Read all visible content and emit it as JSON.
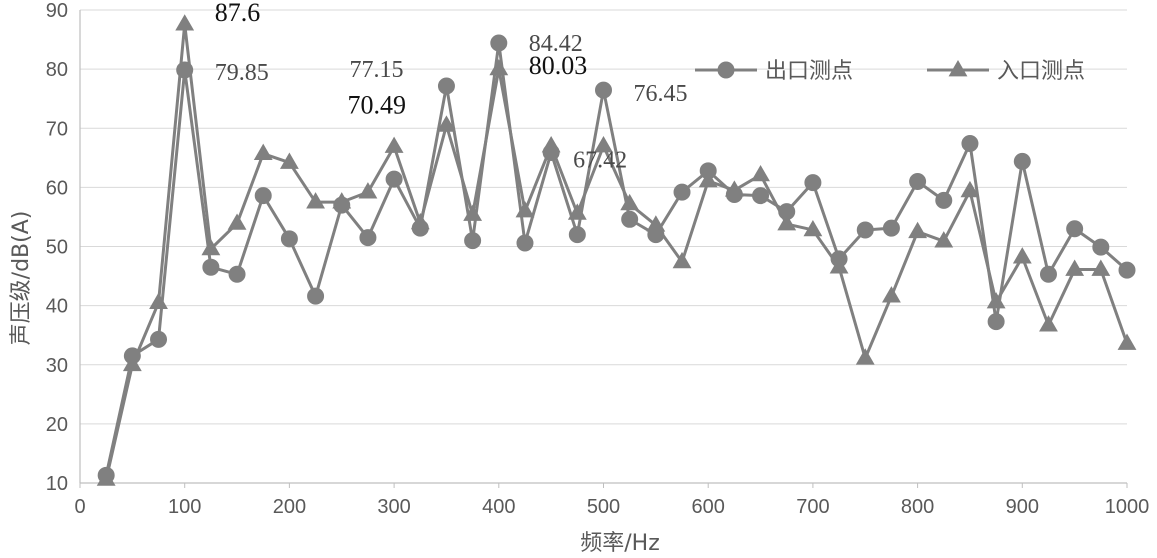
{
  "chart_data": {
    "type": "line",
    "xlabel": "频率/Hz",
    "ylabel": "声压级/dB(A)",
    "xlim": [
      0,
      1000
    ],
    "ylim": [
      10,
      90
    ],
    "xticks": [
      0,
      100,
      200,
      300,
      400,
      500,
      600,
      700,
      800,
      900,
      1000
    ],
    "yticks": [
      10,
      20,
      30,
      40,
      50,
      60,
      70,
      80,
      90
    ],
    "grid": "horizontal",
    "legend_position": "top-right",
    "series": [
      {
        "name": "出口测点",
        "marker": "circle",
        "color": "#808080",
        "x": [
          25,
          50,
          75,
          100,
          125,
          150,
          175,
          200,
          225,
          250,
          275,
          300,
          325,
          350,
          375,
          400,
          425,
          450,
          475,
          500,
          525,
          550,
          575,
          600,
          625,
          650,
          675,
          700,
          725,
          750,
          775,
          800,
          825,
          850,
          875,
          900,
          925,
          950,
          975,
          1000
        ],
        "values": [
          11.3,
          31.5,
          34.3,
          79.85,
          46.5,
          45.3,
          58.6,
          51.3,
          41.6,
          57.0,
          51.5,
          61.4,
          53.1,
          77.15,
          51.0,
          84.42,
          50.6,
          65.9,
          52.0,
          76.45,
          54.6,
          52.0,
          59.2,
          62.8,
          58.8,
          58.6,
          55.9,
          60.8,
          47.9,
          52.8,
          53.1,
          61.0,
          57.8,
          67.42,
          37.3,
          64.4,
          45.3,
          53.0,
          49.9,
          46.0
        ]
      },
      {
        "name": "入口测点",
        "marker": "triangle",
        "color": "#808080",
        "x": [
          25,
          50,
          75,
          100,
          125,
          150,
          175,
          200,
          225,
          250,
          275,
          300,
          325,
          350,
          375,
          400,
          425,
          450,
          475,
          500,
          525,
          550,
          575,
          600,
          625,
          650,
          675,
          700,
          725,
          750,
          775,
          800,
          825,
          850,
          875,
          900,
          925,
          950,
          975,
          1000
        ],
        "values": [
          10.6,
          30.0,
          40.5,
          87.6,
          49.6,
          53.9,
          65.7,
          64.2,
          57.5,
          57.5,
          59.2,
          66.9,
          54.0,
          70.49,
          55.4,
          80.03,
          56.0,
          67.0,
          55.6,
          67.0,
          57.2,
          53.6,
          47.4,
          61.1,
          59.5,
          62.1,
          53.8,
          52.8,
          46.5,
          31.1,
          41.6,
          52.5,
          50.9,
          59.4,
          40.6,
          48.2,
          36.7,
          46.1,
          46.1,
          33.6
        ]
      }
    ],
    "annotations": [
      {
        "text": "87.6",
        "x": 100,
        "y": 87.6,
        "style": "bold"
      },
      {
        "text": "79.85",
        "x": 100,
        "y": 79.85,
        "style": "normal"
      },
      {
        "text": "77.15",
        "x": 350,
        "y": 77.15,
        "style": "normal"
      },
      {
        "text": "70.49",
        "x": 350,
        "y": 70.49,
        "style": "bold"
      },
      {
        "text": "84.42",
        "x": 400,
        "y": 84.42,
        "style": "normal"
      },
      {
        "text": "80.03",
        "x": 400,
        "y": 80.03,
        "style": "bold"
      },
      {
        "text": "67.42",
        "x": 450,
        "y": 67.42,
        "style": "normal"
      },
      {
        "text": "76.45",
        "x": 500,
        "y": 76.45,
        "style": "normal"
      }
    ]
  }
}
